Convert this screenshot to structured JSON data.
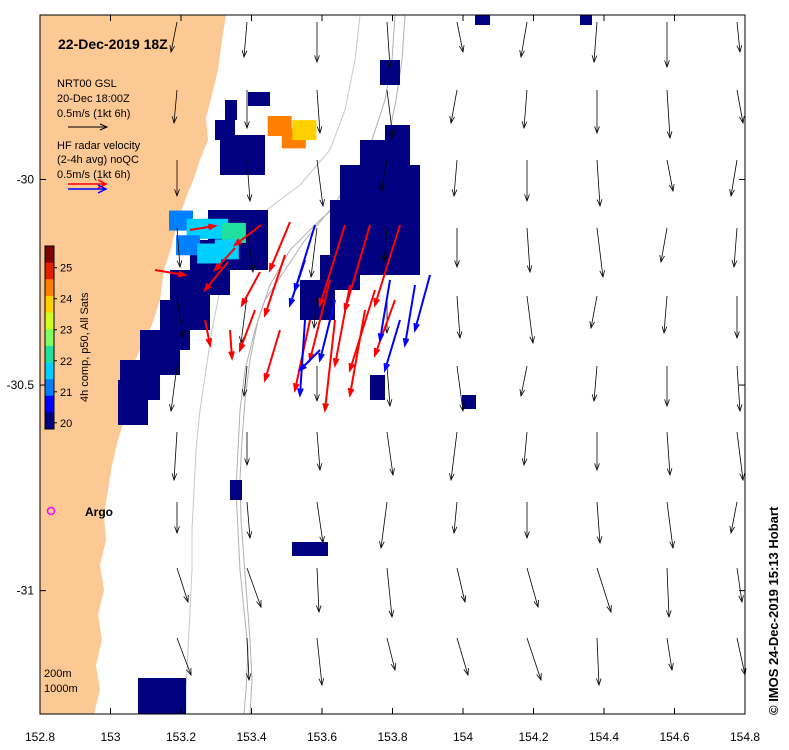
{
  "title": "22-Dec-2019 18Z",
  "model_legend": {
    "line1": "NRT00 GSL",
    "line2": "20-Dec 18:00Z",
    "line3": "0.5m/s (1kt 6h)",
    "arrow_color": "#000000"
  },
  "radar_legend": {
    "line1": "HF radar velocity",
    "line2": "(2-4h avg) noQC",
    "line3": "0.5m/s (1kt 6h)",
    "colors": [
      "#ff0000",
      "#0000ff"
    ]
  },
  "colorbar": {
    "label": "4h comp, p50, All Sats",
    "ticks": [
      "20",
      "21",
      "22",
      "23",
      "24",
      "25"
    ],
    "min": 19.8,
    "max": 25.7,
    "colors": [
      "#00007f",
      "#0000ff",
      "#0080ff",
      "#00d0ff",
      "#20e0a0",
      "#80ff60",
      "#d0ff20",
      "#ffd000",
      "#ff8000",
      "#e02000",
      "#7f0000"
    ]
  },
  "axes": {
    "x_ticks": [
      "152.8",
      "153",
      "153.2",
      "153.4",
      "153.6",
      "153.8",
      "154",
      "154.2",
      "154.4",
      "154.6",
      "154.8"
    ],
    "y_ticks": [
      "-30",
      "-30.5",
      "-31"
    ],
    "x_range": [
      152.8,
      154.8
    ],
    "y_range": [
      -31.3,
      -29.6
    ]
  },
  "argo": {
    "label": "Argo",
    "color": "#ff00ff"
  },
  "depth_legend": {
    "line1": "200m",
    "line2": "1000m"
  },
  "credit": "© IMOS 24-Dec-2019 15:13 Hobart",
  "land_color": "#fcc995",
  "sst_patches": [
    {
      "lon": 153.2,
      "lat": -30.1,
      "value": 21.2
    },
    {
      "lon": 153.25,
      "lat": -30.12,
      "value": 21.5
    },
    {
      "lon": 153.3,
      "lat": -30.12,
      "value": 21.8
    },
    {
      "lon": 153.35,
      "lat": -30.13,
      "value": 22.0
    },
    {
      "lon": 153.22,
      "lat": -30.16,
      "value": 21.3
    },
    {
      "lon": 153.28,
      "lat": -30.18,
      "value": 21.6
    },
    {
      "lon": 153.33,
      "lat": -30.17,
      "value": 21.9
    },
    {
      "lon": 153.48,
      "lat": -29.87,
      "value": 24.2
    },
    {
      "lon": 153.52,
      "lat": -29.9,
      "value": 24.6
    },
    {
      "lon": 153.55,
      "lat": -29.88,
      "value": 23.8
    }
  ]
}
